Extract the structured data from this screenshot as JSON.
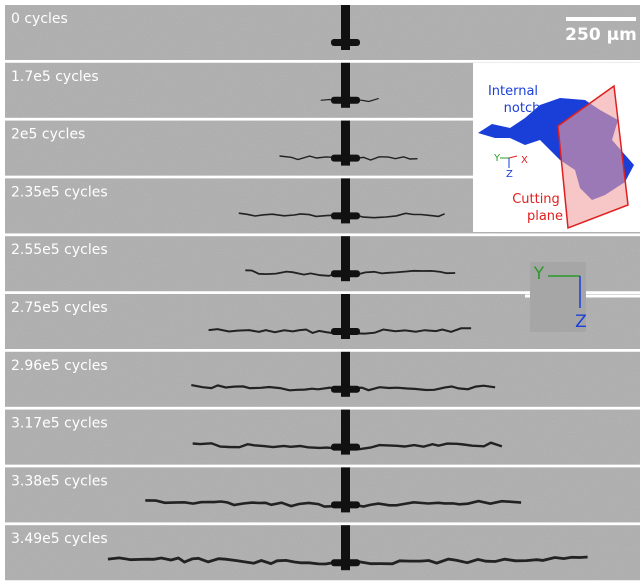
{
  "panels": [
    {
      "label": "0 cycles"
    },
    {
      "label": "1.7e5 cycles"
    },
    {
      "label": "2e5 cycles"
    },
    {
      "label": "2.35e5 cycles"
    },
    {
      "label": "2.55e5 cycles"
    },
    {
      "label": "2.75e5 cycles"
    },
    {
      "label": "2.96e5 cycles"
    },
    {
      "label": "3.17e5 cycles"
    },
    {
      "label": "3.38e5 cycles"
    },
    {
      "label": "3.49e5 cycles"
    }
  ],
  "scale_bar": {
    "label": "250 μm"
  },
  "inset": {
    "notch_label": [
      "Internal",
      "notch"
    ],
    "plane_label": [
      "Cutting",
      "plane"
    ],
    "axes": [
      "Y",
      "Z",
      "X"
    ]
  },
  "axes": {
    "horizontal": "Y",
    "vertical": "Z"
  }
}
